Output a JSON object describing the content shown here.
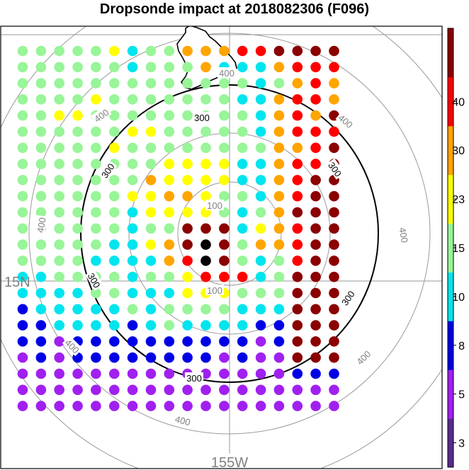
{
  "title": "Dropsonde impact at 2018082306 (F096)",
  "chart_data": {
    "type": "heatmap",
    "title": "Dropsonde impact at 2018082306 (F096)",
    "map": {
      "graticule_labels": [
        "15N",
        "155W"
      ],
      "range_rings": [
        {
          "label": "100",
          "color": "#808080",
          "emphasis": false
        },
        {
          "label": "200",
          "color": "#808080",
          "emphasis": false,
          "label_shown": false
        },
        {
          "label": "300",
          "color": "#000000",
          "emphasis": true
        },
        {
          "label": "400",
          "color": "#808080",
          "emphasis": false
        },
        {
          "label": "500",
          "color": "#808080",
          "emphasis": false,
          "label_shown": false
        }
      ],
      "coastline": "Hawaii (Big Island)"
    },
    "colorbar": {
      "levels": [
        3,
        5,
        8,
        10,
        15,
        23,
        30,
        40
      ],
      "tick_labels": [
        "3",
        "5",
        "8",
        "10",
        "15",
        "23",
        "30",
        "40"
      ],
      "colors": [
        "#5a2a8c",
        "#a020f0",
        "#0000e6",
        "#00e5ee",
        "#98f598",
        "#ffff00",
        "#ffa500",
        "#ff0000",
        "#8b0000"
      ]
    },
    "grid_classes": [
      "444445344666778888",
      "444444344463336777",
      "444444444444434676",
      "444454444444336776",
      "445544444444436768",
      "444444554444436777",
      "444445444444446678",
      "444444445555336778",
      "444444465555336788",
      "444444556654436788",
      "444444355554346888",
      "444444344888356788",
      "444443356898466788",
      "444433336798434788",
      "334444344577734888",
      "333344333555444888",
      "233333434444333888",
      "223333234333322888",
      "221222222222212888",
      "121222222221211888",
      "111111111111111222",
      "111111111111111111",
      "111111111111111111"
    ]
  }
}
